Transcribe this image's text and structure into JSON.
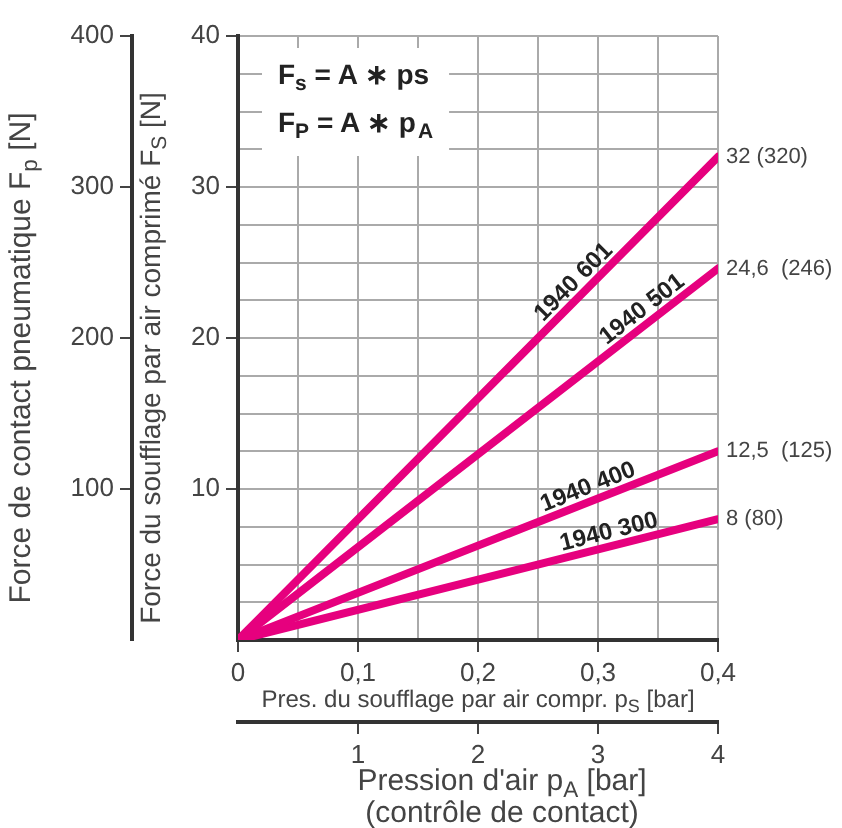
{
  "chart_data": {
    "type": "line",
    "xlabel": "Pres. du soufflage par air compr. p$_{S}$ [bar]",
    "x2label": "Pression d'air p$_{A}$ [bar]\n(contrôle de contact)",
    "ylabel": "Force du soufflage par air comprimé F$_{S}$ [N]",
    "y2label": "Force de contact pneumatique F$_{p}$ [N]",
    "x": [
      0,
      0.4
    ],
    "xlim": [
      0,
      0.4
    ],
    "xticks": [
      0,
      {
        "value": 0.05,
        "label": null
      },
      {
        "value": 0.1,
        "label": "0,1"
      },
      {
        "value": 0.15,
        "label": null
      },
      {
        "value": 0.2,
        "label": "0,2"
      },
      {
        "value": 0.25,
        "label": null
      },
      {
        "value": 0.3,
        "label": "0,3"
      },
      {
        "value": 0.35,
        "label": null
      },
      {
        "value": 0.4,
        "label": "0,4"
      }
    ],
    "x2lim": [
      0,
      4
    ],
    "x2ticks": [
      1,
      2,
      3,
      4
    ],
    "ylim": [
      0,
      40
    ],
    "yticks": [
      {
        "value": 2.5,
        "label": null
      },
      {
        "value": 5,
        "label": null
      },
      {
        "value": 7.5,
        "label": null
      },
      10,
      {
        "value": 12.5,
        "label": null
      },
      {
        "value": 15,
        "label": null
      },
      {
        "value": 17.5,
        "label": null
      },
      20,
      {
        "value": 22.5,
        "label": null
      },
      {
        "value": 25,
        "label": null
      },
      {
        "value": 27.5,
        "label": null
      },
      30,
      {
        "value": 32.5,
        "label": null
      },
      {
        "value": 35,
        "label": null
      },
      {
        "value": 37.5,
        "label": null
      },
      40
    ],
    "y2lim": [
      0,
      400
    ],
    "y2ticks": [
      100,
      200,
      300,
      400
    ],
    "grid": true,
    "marker": "none",
    "line_style": "solid",
    "series": [
      {
        "name": "1940 601",
        "color": "#e6007e",
        "values": [
          0,
          32
        ],
        "value_labels": [
          null,
          "32 (320)"
        ]
      },
      {
        "name": "1940 501",
        "color": "#e6007e",
        "values": [
          0,
          24.6
        ],
        "value_labels": [
          null,
          "24,6  (246)"
        ]
      },
      {
        "name": "1940 400",
        "color": "#e6007e",
        "values": [
          0,
          12.5
        ],
        "value_labels": [
          null,
          "12,5  (125)"
        ]
      },
      {
        "name": "1940 300",
        "color": "#e6007e",
        "values": [
          0,
          8
        ],
        "value_labels": [
          null,
          "8 (80)"
        ]
      }
    ],
    "annotations": [
      "F$_{s}$ = A ∗ ps",
      "F$_{P}$ = A ∗ p$_{A}$"
    ]
  }
}
